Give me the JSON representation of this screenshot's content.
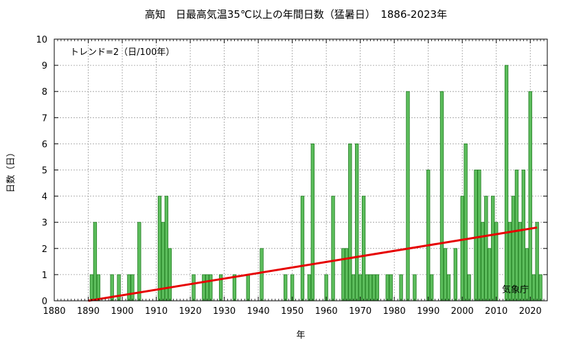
{
  "chart_data": {
    "type": "bar",
    "title": "高知　日最高気温35℃以上の年間日数（猛暑日）　1886-2023年",
    "xlabel": "年",
    "ylabel": "日数（日）",
    "xlim": [
      1880,
      2025
    ],
    "ylim": [
      0,
      10
    ],
    "xticks": [
      1880,
      1890,
      1900,
      1910,
      1920,
      1930,
      1940,
      1950,
      1960,
      1970,
      1980,
      1990,
      2000,
      2010,
      2020
    ],
    "yticks": [
      0,
      1,
      2,
      3,
      4,
      5,
      6,
      7,
      8,
      9,
      10
    ],
    "grid": true,
    "trend_annotation": "トレンド=2（日/100年）",
    "credit": "気象庁",
    "bar_color": "#5cbd5c",
    "trend_color": "#e60000",
    "trend": {
      "x": [
        1890,
        2022
      ],
      "y": [
        0.0,
        2.8
      ]
    },
    "x": [
      1886,
      1887,
      1888,
      1889,
      1890,
      1891,
      1892,
      1893,
      1894,
      1895,
      1896,
      1897,
      1898,
      1899,
      1900,
      1901,
      1902,
      1903,
      1904,
      1905,
      1906,
      1907,
      1908,
      1909,
      1910,
      1911,
      1912,
      1913,
      1914,
      1915,
      1916,
      1917,
      1918,
      1919,
      1920,
      1921,
      1922,
      1923,
      1924,
      1925,
      1926,
      1927,
      1928,
      1929,
      1930,
      1931,
      1932,
      1933,
      1934,
      1935,
      1936,
      1937,
      1938,
      1939,
      1940,
      1941,
      1942,
      1943,
      1944,
      1945,
      1946,
      1947,
      1948,
      1949,
      1950,
      1951,
      1952,
      1953,
      1954,
      1955,
      1956,
      1957,
      1958,
      1959,
      1960,
      1961,
      1962,
      1963,
      1964,
      1965,
      1966,
      1967,
      1968,
      1969,
      1970,
      1971,
      1972,
      1973,
      1974,
      1975,
      1976,
      1977,
      1978,
      1979,
      1980,
      1981,
      1982,
      1983,
      1984,
      1985,
      1986,
      1987,
      1988,
      1989,
      1990,
      1991,
      1992,
      1993,
      1994,
      1995,
      1996,
      1997,
      1998,
      1999,
      2000,
      2001,
      2002,
      2003,
      2004,
      2005,
      2006,
      2007,
      2008,
      2009,
      2010,
      2011,
      2012,
      2013,
      2014,
      2015,
      2016,
      2017,
      2018,
      2019,
      2020,
      2021,
      2022,
      2023
    ],
    "values": [
      0,
      0,
      0,
      0,
      0,
      1,
      3,
      1,
      0,
      0,
      0,
      1,
      0,
      1,
      0,
      0,
      1,
      1,
      0,
      3,
      0,
      0,
      0,
      0,
      0,
      4,
      3,
      4,
      2,
      0,
      0,
      0,
      0,
      0,
      0,
      1,
      0,
      0,
      1,
      1,
      1,
      0,
      0,
      1,
      0,
      0,
      0,
      1,
      0,
      0,
      0,
      1,
      0,
      0,
      0,
      2,
      0,
      0,
      0,
      0,
      0,
      0,
      1,
      0,
      1,
      0,
      0,
      4,
      0,
      1,
      6,
      0,
      0,
      0,
      1,
      0,
      4,
      0,
      0,
      2,
      2,
      6,
      1,
      6,
      1,
      4,
      1,
      1,
      1,
      1,
      0,
      0,
      1,
      1,
      0,
      0,
      1,
      0,
      8,
      0,
      1,
      0,
      0,
      0,
      5,
      1,
      0,
      0,
      8,
      2,
      1,
      0,
      2,
      0,
      4,
      6,
      1,
      0,
      5,
      5,
      3,
      4,
      2,
      4,
      3,
      0,
      0,
      9,
      3,
      4,
      5,
      3,
      5,
      2,
      8,
      1,
      3,
      1
    ]
  }
}
